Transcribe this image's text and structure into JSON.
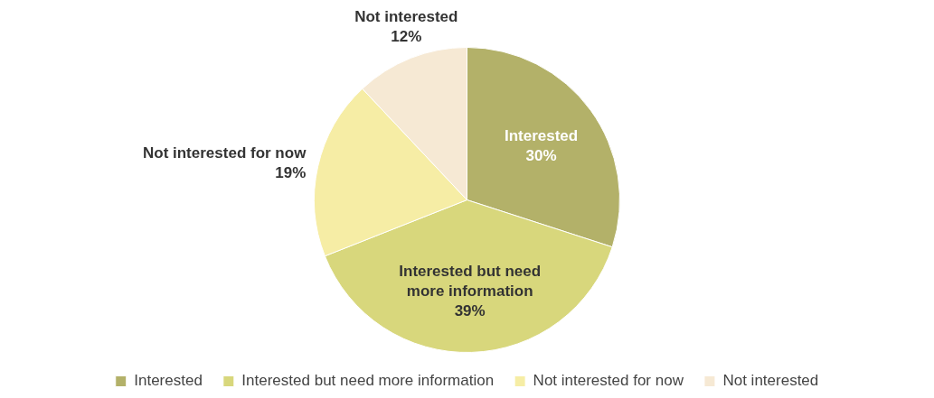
{
  "chart_data": {
    "type": "pie",
    "categories": [
      "Interested",
      "Interested but need more information",
      "Not interested for now",
      "Not interested"
    ],
    "values": [
      30,
      39,
      19,
      12
    ],
    "value_labels": [
      "30%",
      "39%",
      "19%",
      "12%"
    ],
    "colors": [
      "#b3b169",
      "#d8d77c",
      "#f6eda5",
      "#f6e9d4"
    ],
    "legend": "bottom"
  }
}
